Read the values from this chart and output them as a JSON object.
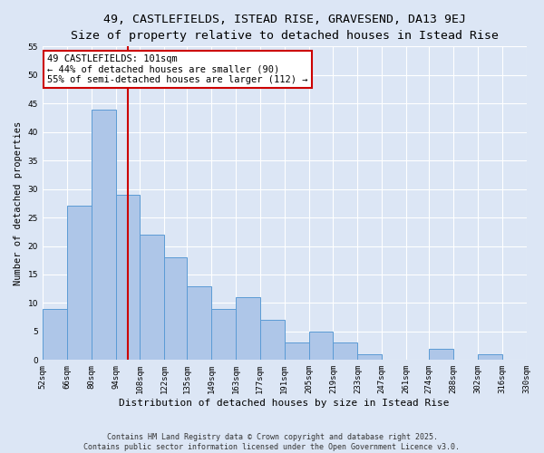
{
  "title": "49, CASTLEFIELDS, ISTEAD RISE, GRAVESEND, DA13 9EJ",
  "subtitle": "Size of property relative to detached houses in Istead Rise",
  "xlabel": "Distribution of detached houses by size in Istead Rise",
  "ylabel": "Number of detached properties",
  "bar_edges": [
    52,
    66,
    80,
    94,
    108,
    122,
    135,
    149,
    163,
    177,
    191,
    205,
    219,
    233,
    247,
    261,
    274,
    288,
    302,
    316,
    330
  ],
  "bar_heights": [
    9,
    27,
    44,
    29,
    22,
    18,
    13,
    9,
    11,
    7,
    3,
    5,
    3,
    1,
    0,
    0,
    2,
    0,
    1,
    0
  ],
  "bar_color": "#aec6e8",
  "bar_edgecolor": "#5b9bd5",
  "vline_x": 101,
  "vline_color": "#cc0000",
  "ylim": [
    0,
    55
  ],
  "yticks": [
    0,
    5,
    10,
    15,
    20,
    25,
    30,
    35,
    40,
    45,
    50,
    55
  ],
  "background_color": "#dce6f5",
  "plot_background": "#dce6f5",
  "annotation_title": "49 CASTLEFIELDS: 101sqm",
  "annotation_line1": "← 44% of detached houses are smaller (90)",
  "annotation_line2": "55% of semi-detached houses are larger (112) →",
  "annotation_box_edgecolor": "#cc0000",
  "annotation_box_facecolor": "#ffffff",
  "tick_labels": [
    "52sqm",
    "66sqm",
    "80sqm",
    "94sqm",
    "108sqm",
    "122sqm",
    "135sqm",
    "149sqm",
    "163sqm",
    "177sqm",
    "191sqm",
    "205sqm",
    "219sqm",
    "233sqm",
    "247sqm",
    "261sqm",
    "274sqm",
    "288sqm",
    "302sqm",
    "316sqm",
    "330sqm"
  ],
  "footer_line1": "Contains HM Land Registry data © Crown copyright and database right 2025.",
  "footer_line2": "Contains public sector information licensed under the Open Government Licence v3.0.",
  "title_fontsize": 9.5,
  "subtitle_fontsize": 8.5,
  "xlabel_fontsize": 8,
  "ylabel_fontsize": 7.5,
  "tick_fontsize": 6.5,
  "annotation_fontsize": 7.5,
  "footer_fontsize": 6
}
